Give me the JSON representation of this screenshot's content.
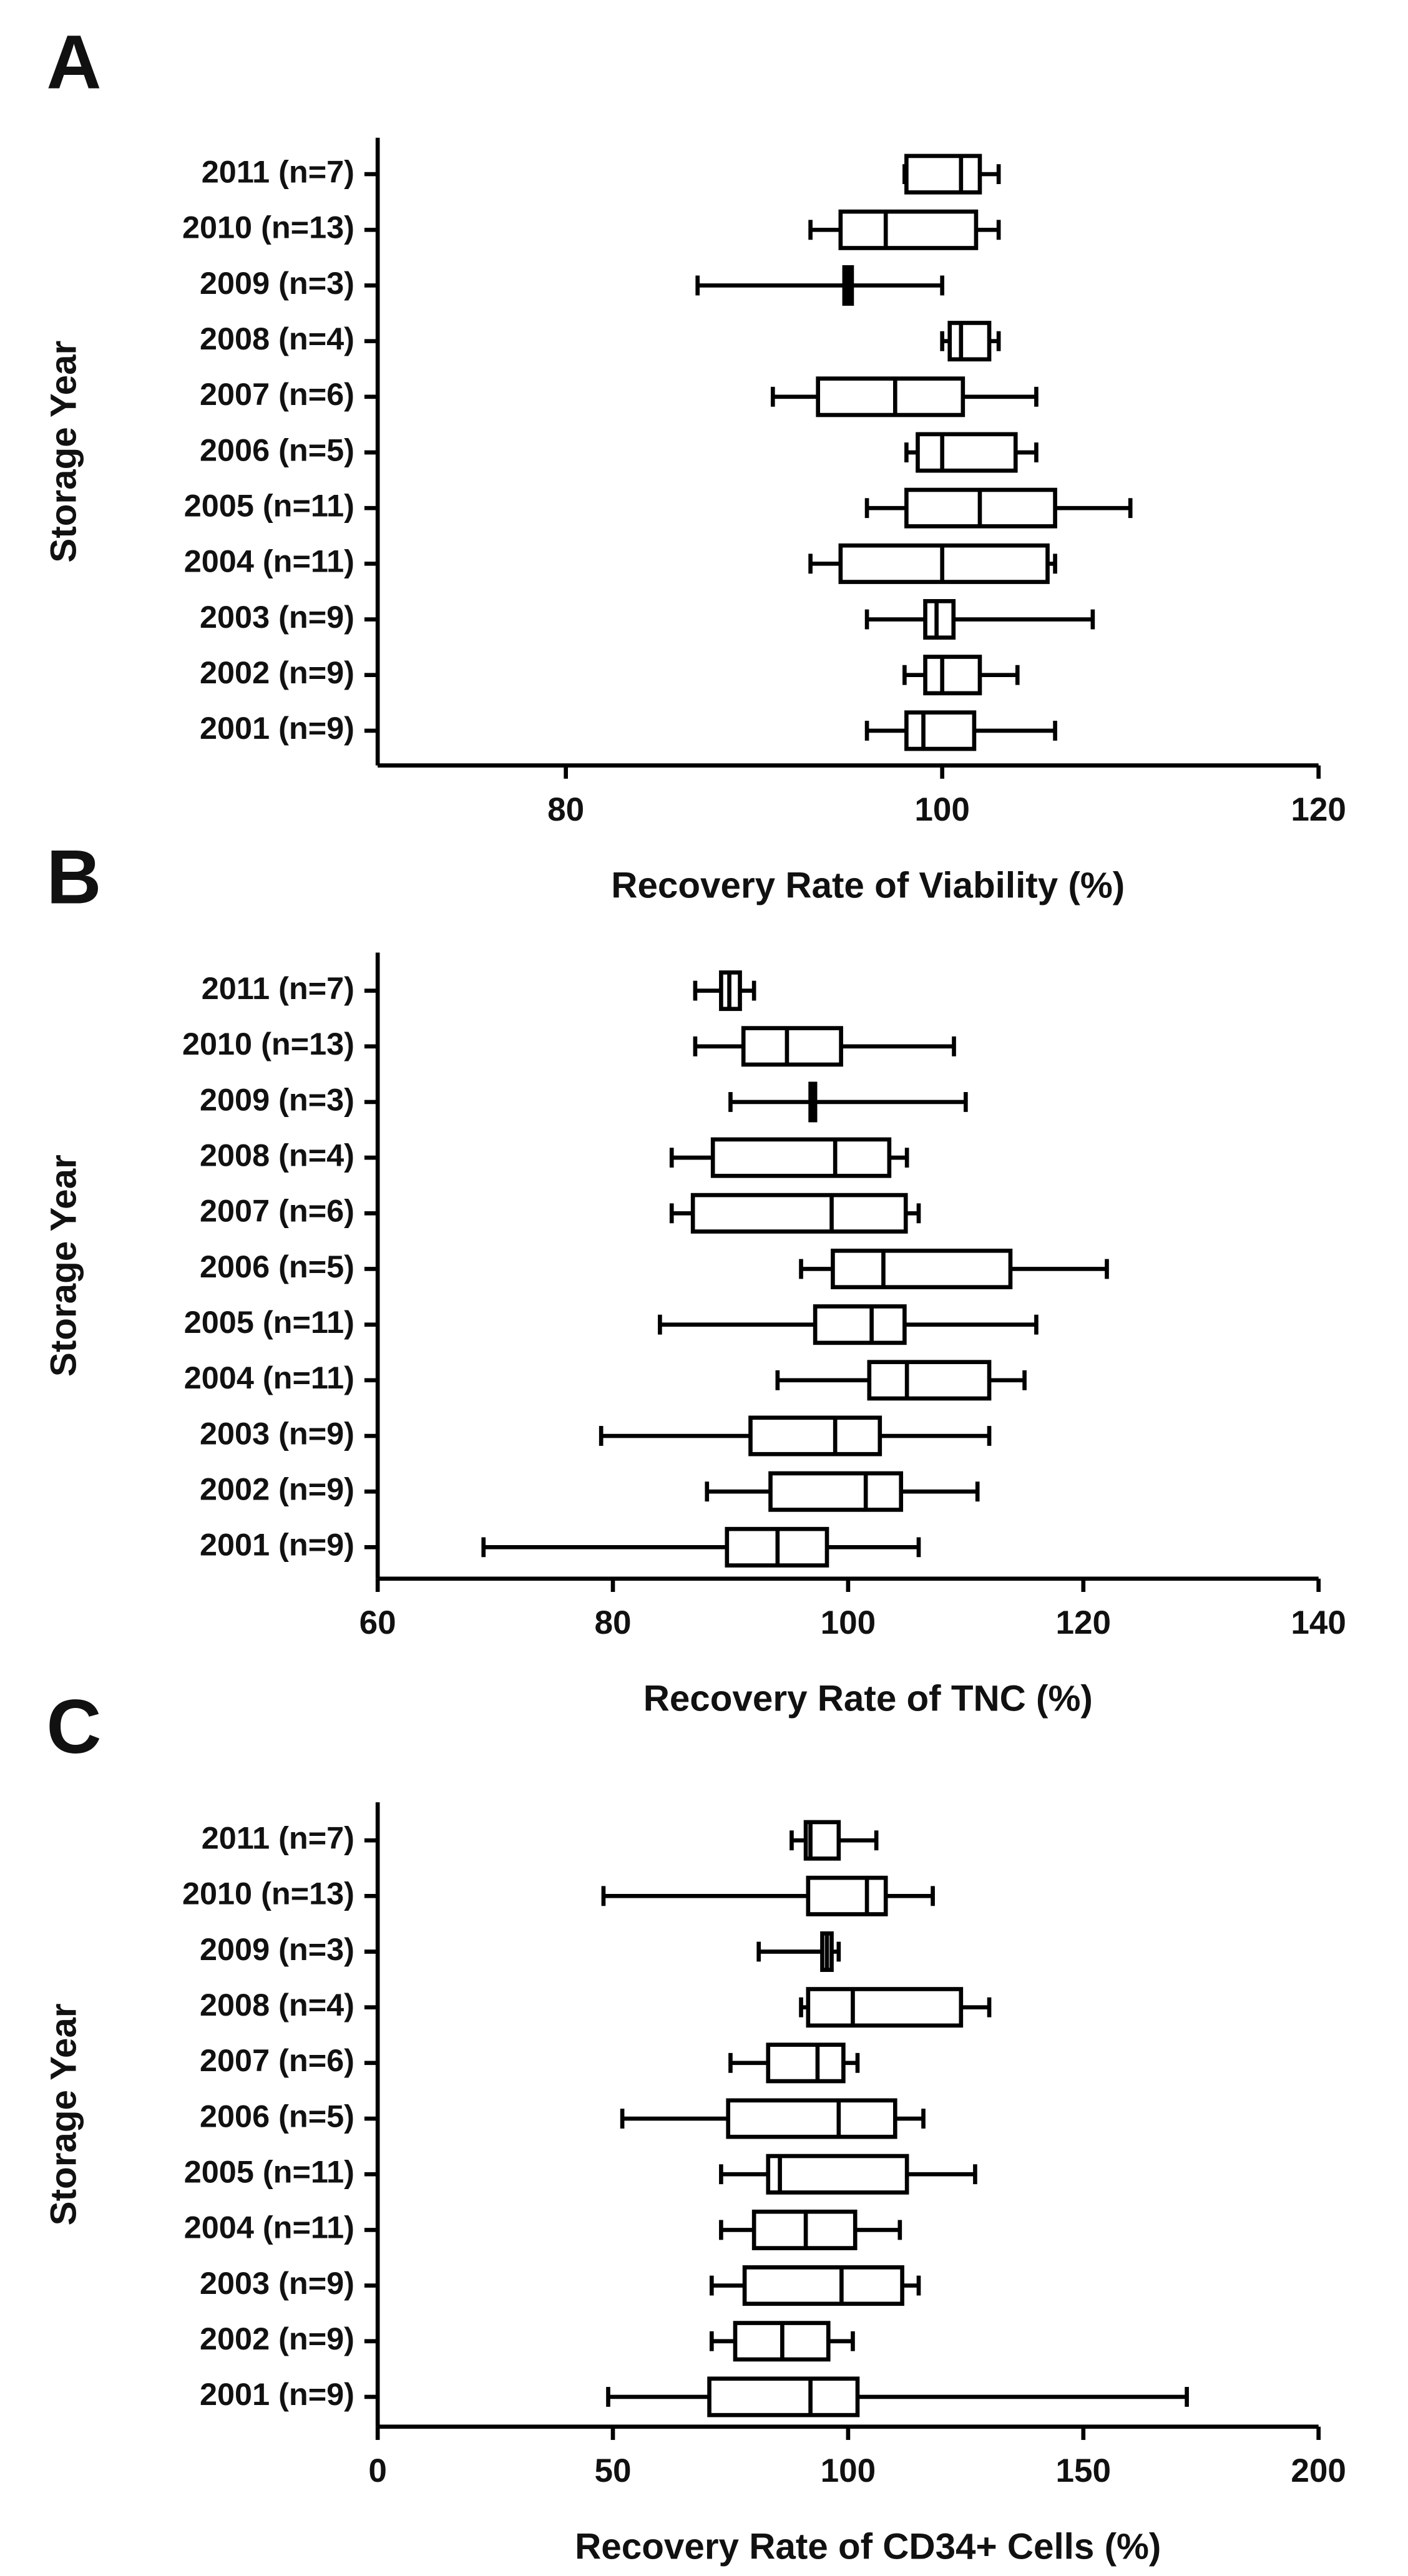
{
  "chart_data": [
    {
      "type": "box",
      "label": "A",
      "ylabel": "Storage Year",
      "xlabel": "Recovery Rate of Viability (%)",
      "categories": [
        "2011 (n=7)",
        "2010 (n=13)",
        "2009 (n=3)",
        "2008 (n=4)",
        "2007 (n=6)",
        "2006 (n=5)",
        "2005 (n=11)",
        "2004 (n=11)",
        "2003 (n=9)",
        "2002 (n=9)",
        "2001 (n=9)"
      ],
      "min": [
        98,
        93,
        87,
        100,
        91,
        98.1,
        96,
        93,
        96,
        98,
        96
      ],
      "q1": [
        98.1,
        94.6,
        94.8,
        100.4,
        93.4,
        98.7,
        98.1,
        94.6,
        99.1,
        99.1,
        98.1
      ],
      "median": [
        101,
        97,
        95,
        101,
        97.5,
        100,
        102,
        100,
        99.7,
        100,
        99
      ],
      "q3": [
        102,
        101.8,
        95.2,
        102.5,
        101.1,
        103.9,
        106,
        105.6,
        100.6,
        102,
        101.7
      ],
      "max": [
        103,
        103,
        100,
        103,
        105,
        105,
        110,
        106,
        108,
        104,
        106
      ],
      "xlim": [
        70,
        120
      ],
      "xticks": [
        80,
        100,
        120
      ]
    },
    {
      "type": "box",
      "label": "B",
      "ylabel": "Storage Year",
      "xlabel": "Recovery Rate of TNC (%)",
      "categories": [
        "2011 (n=7)",
        "2010 (n=13)",
        "2009 (n=3)",
        "2008 (n=4)",
        "2007 (n=6)",
        "2006 (n=5)",
        "2005 (n=11)",
        "2004 (n=11)",
        "2003 (n=9)",
        "2002 (n=9)",
        "2001 (n=9)"
      ],
      "min": [
        87,
        87,
        90,
        85,
        85,
        96,
        84,
        94,
        79,
        88,
        69
      ],
      "q1": [
        89.2,
        91.1,
        96.8,
        88.5,
        86.8,
        98.7,
        97.2,
        101.8,
        91.7,
        93.4,
        89.7
      ],
      "median": [
        89.9,
        94.8,
        97,
        98.9,
        98.6,
        103,
        102,
        105,
        98.9,
        101.5,
        94
      ],
      "q3": [
        90.8,
        99.4,
        97.2,
        103.5,
        104.9,
        113.8,
        104.8,
        112,
        102.7,
        104.5,
        98.2
      ],
      "max": [
        92,
        109,
        110,
        105,
        106,
        122,
        116,
        115,
        112,
        111,
        106
      ],
      "xlim": [
        60,
        140
      ],
      "xticks": [
        60,
        80,
        100,
        120,
        140
      ]
    },
    {
      "type": "box",
      "label": "C",
      "ylabel": "Storage Year",
      "xlabel": "Recovery Rate of CD34+ Cells (%)",
      "categories": [
        "2011 (n=7)",
        "2010 (n=13)",
        "2009 (n=3)",
        "2008 (n=4)",
        "2007 (n=6)",
        "2006 (n=5)",
        "2005 (n=11)",
        "2004 (n=11)",
        "2003 (n=9)",
        "2002 (n=9)",
        "2001 (n=9)"
      ],
      "min": [
        88,
        48,
        81,
        90,
        75,
        52,
        73,
        73,
        71,
        71,
        49
      ],
      "q1": [
        91,
        91.5,
        94.5,
        91.5,
        83,
        74.5,
        83,
        80,
        78,
        76,
        70.5
      ],
      "median": [
        92,
        104,
        95.5,
        101,
        93.5,
        98,
        85.5,
        91,
        98.6,
        86,
        92
      ],
      "q3": [
        98,
        108,
        96.5,
        124,
        99,
        110,
        112.5,
        101.5,
        111.5,
        95.8,
        102
      ],
      "max": [
        106,
        118,
        98,
        130,
        102,
        116,
        127,
        111,
        115,
        101,
        172
      ],
      "xlim": [
        0,
        200
      ],
      "xticks": [
        0,
        50,
        100,
        150,
        200
      ]
    }
  ]
}
